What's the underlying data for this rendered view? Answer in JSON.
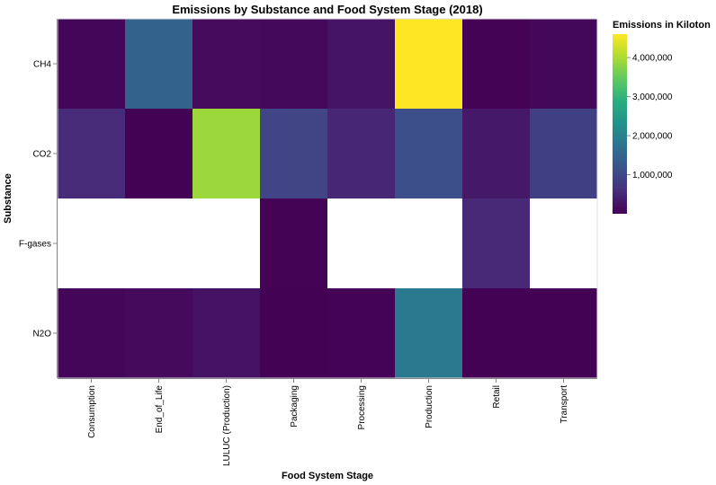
{
  "chart_data": {
    "type": "heatmap",
    "title": "Emissions by Substance and Food System Stage (2018)",
    "xlabel": "Food System Stage",
    "ylabel": "Substance",
    "x_categories": [
      "Consumption",
      "End_of_Life",
      "LULUC (Production)",
      "Packaging",
      "Processing",
      "Production",
      "Retail",
      "Transport"
    ],
    "y_categories": [
      "CH4",
      "CO2",
      "F-gases",
      "N2O"
    ],
    "values": [
      [
        60000,
        1450000,
        150000,
        100000,
        250000,
        4600000,
        20000,
        90000
      ],
      [
        550000,
        10000,
        3900000,
        950000,
        480000,
        1100000,
        300000,
        850000
      ],
      [
        null,
        null,
        null,
        20000,
        null,
        null,
        520000,
        null
      ],
      [
        70000,
        120000,
        220000,
        15000,
        30000,
        1850000,
        10000,
        15000
      ]
    ],
    "color_scale": "viridis",
    "legend": {
      "title": "Emissions in Kiloton",
      "position": "right",
      "domain": [
        0,
        4600000
      ],
      "ticks": [
        1000000,
        2000000,
        3000000,
        4000000
      ],
      "tick_labels": [
        "1,000,000",
        "2,000,000",
        "3,000,000",
        "4,000,000"
      ]
    }
  }
}
